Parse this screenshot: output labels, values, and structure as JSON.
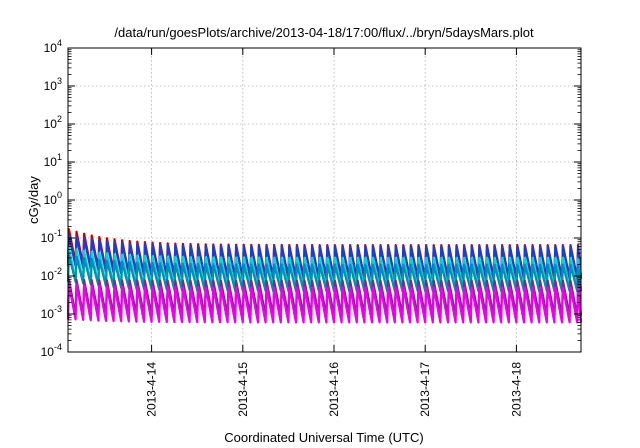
{
  "chart_data": {
    "type": "line",
    "title": "/data/run/goesPlots/archive/2013-04-18/17:00/flux/../bryn/5daysMars.plot",
    "xlabel": "Coordinated Universal Time (UTC)",
    "ylabel": "cGy/day",
    "yscale": "log",
    "ylim_exponents": [
      -4,
      4
    ],
    "y_ticks": [
      {
        "base": "10",
        "exp": "4"
      },
      {
        "base": "10",
        "exp": "3"
      },
      {
        "base": "10",
        "exp": "2"
      },
      {
        "base": "10",
        "exp": "1"
      },
      {
        "base": "10",
        "exp": "0"
      },
      {
        "base": "10",
        "exp": "-1"
      },
      {
        "base": "10",
        "exp": "-2"
      },
      {
        "base": "10",
        "exp": "-3"
      },
      {
        "base": "10",
        "exp": "-4"
      }
    ],
    "xlim": [
      "2013-04-13T02:00",
      "2013-04-18T17:00"
    ],
    "x_ticks": [
      "2013-4-14",
      "2013-4-15",
      "2013-4-16",
      "2013-4-17",
      "2013-4-18"
    ],
    "grid": true,
    "sawtooth_period_hours": 2,
    "series": [
      {
        "color": "#cc0000",
        "start_peak": 0.17,
        "steady_peak": 0.065,
        "trough_ratio": 0.13
      },
      {
        "color": "#1a3fd0",
        "start_peak": 0.12,
        "steady_peak": 0.06,
        "trough_ratio": 0.15
      },
      {
        "color": "#00d8d8",
        "start_peak": 0.055,
        "steady_peak": 0.03,
        "trough_ratio": 0.15
      },
      {
        "color": "#0090b0",
        "start_peak": 0.035,
        "steady_peak": 0.02,
        "trough_ratio": 0.2
      },
      {
        "color": "#7a2a8a",
        "start_peak": 0.008,
        "steady_peak": 0.0075,
        "trough_ratio": 0.12
      },
      {
        "color": "#ee00ee",
        "start_peak": 0.006,
        "steady_peak": 0.005,
        "trough_ratio": 0.12
      }
    ]
  }
}
